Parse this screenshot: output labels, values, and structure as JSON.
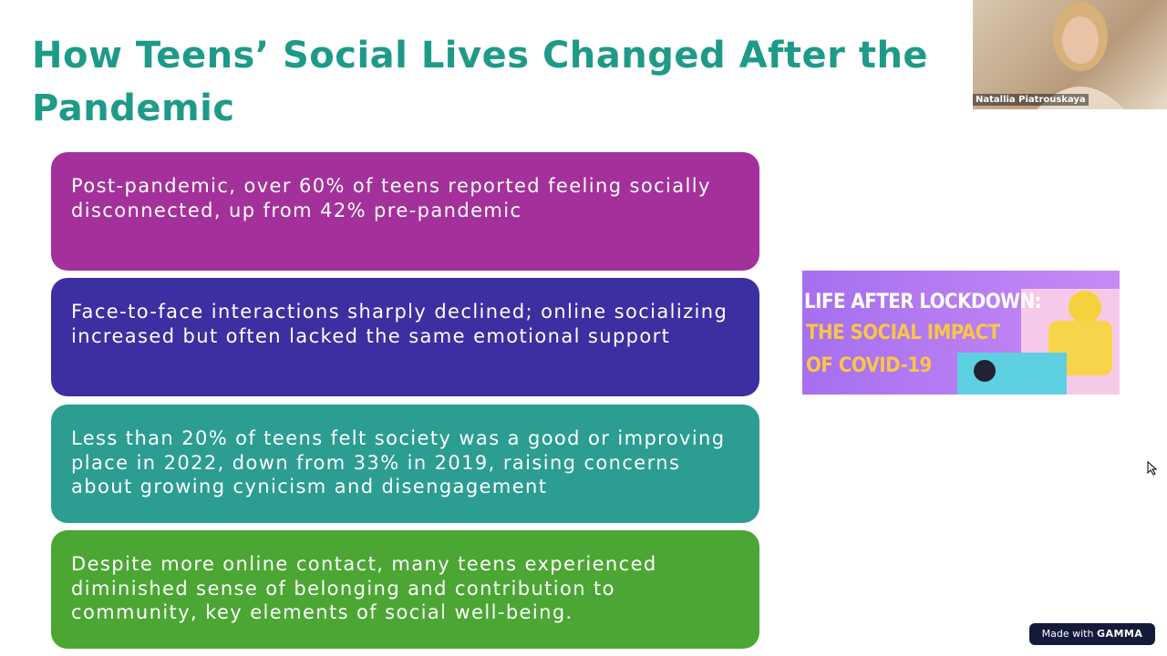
{
  "slide": {
    "title": "How Teens’ Social Lives Changed After the Pandemic",
    "cards": [
      "Post-pandemic, over 60% of teens reported feeling socially disconnected, up from 42% pre-pandemic",
      "Face-to-face interactions sharply declined; online socializing increased but often lacked the same emotional support",
      "Less than 20% of teens felt society was a good or improving place in 2022, down from 33% in 2019, raising concerns about growing cynicism and disengagement",
      "Despite more online contact, many teens experienced diminished sense of belonging and contribution to community, key elements of social well-being."
    ],
    "image_text": [
      "LIFE AFTER LOCKDOWN:",
      "THE SOCIAL IMPACT",
      "OF COVID-19"
    ]
  },
  "video": {
    "participant_name": "Natallia Piatrouskaya"
  },
  "badge": {
    "prefix": "Made with",
    "brand": "GAMMA"
  }
}
